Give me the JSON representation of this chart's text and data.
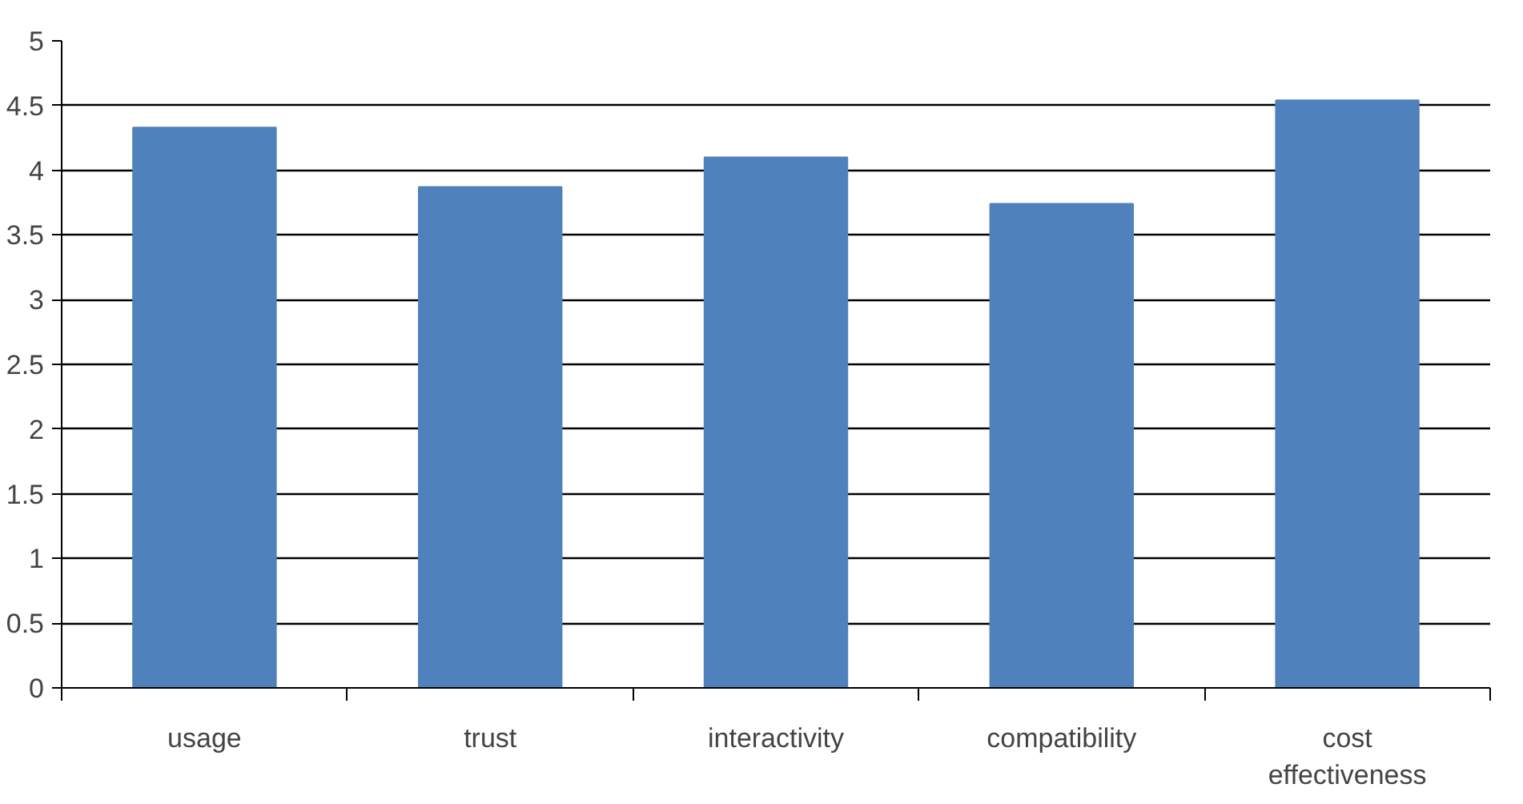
{
  "chart_data": {
    "type": "bar",
    "categories": [
      "usage",
      "trust",
      "interactivity",
      "compatibility",
      "cost effectiveness"
    ],
    "values": [
      4.33,
      3.87,
      4.1,
      3.74,
      4.54
    ],
    "color": "#4f81bd",
    "ylim": [
      0,
      5
    ],
    "yticks": [
      0,
      0.5,
      1,
      1.5,
      2,
      2.5,
      3,
      3.5,
      4,
      4.5,
      5
    ],
    "grid": "y"
  }
}
